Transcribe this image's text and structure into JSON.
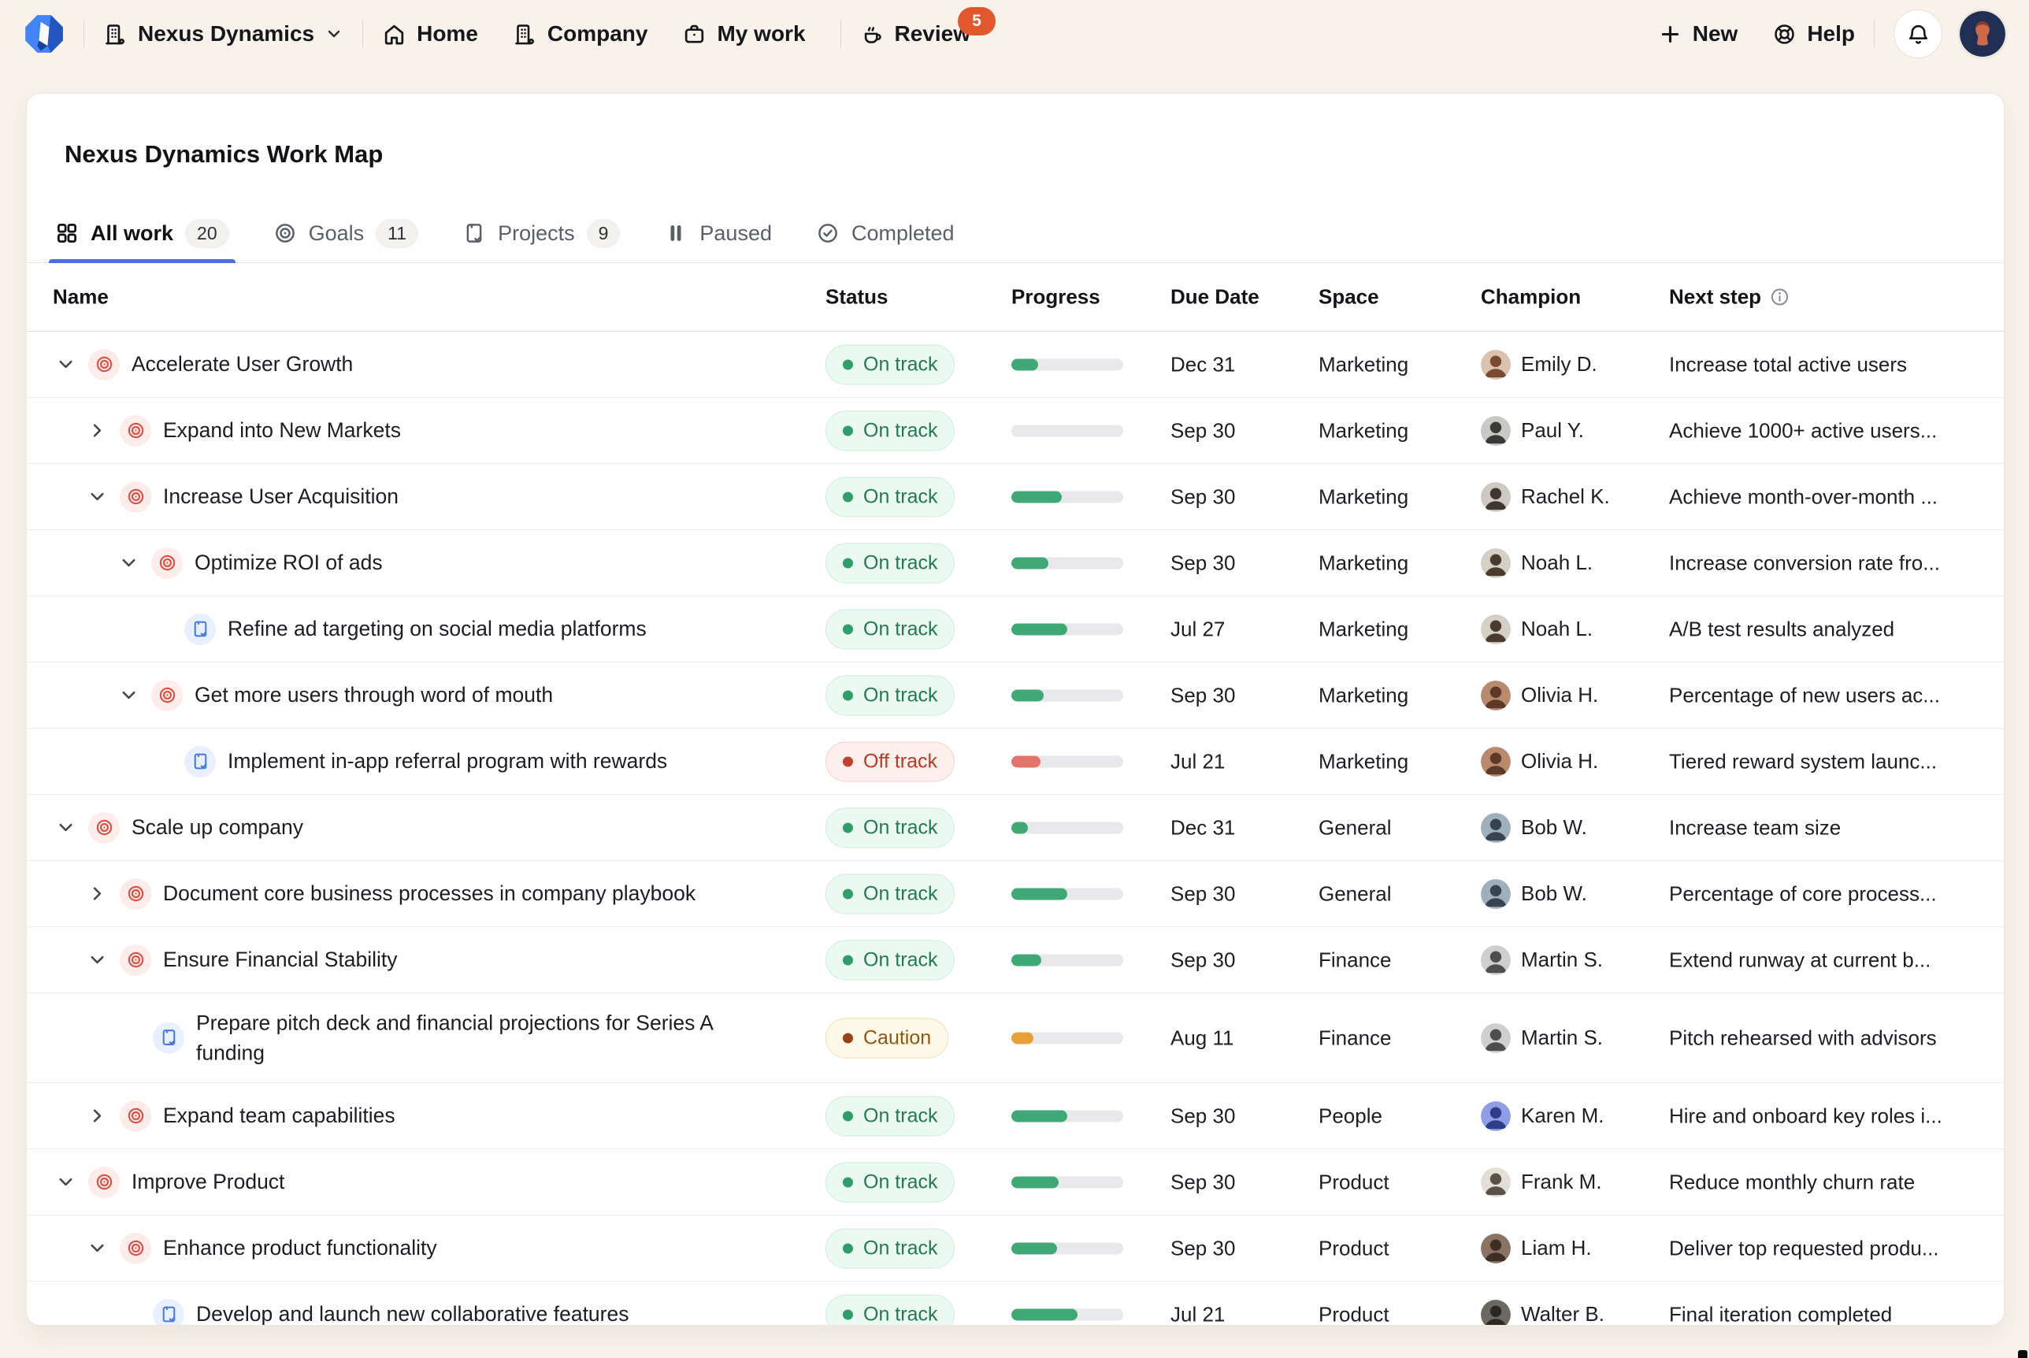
{
  "nav": {
    "workspace_label": "Nexus Dynamics",
    "home_label": "Home",
    "company_label": "Company",
    "my_work_label": "My work",
    "review_label": "Review",
    "review_badge": "5",
    "new_label": "New",
    "help_label": "Help"
  },
  "page": {
    "title": "Nexus Dynamics Work Map"
  },
  "tabs": [
    {
      "label": "All work",
      "count": "20",
      "icon": "grid-icon",
      "active": true
    },
    {
      "label": "Goals",
      "count": "11",
      "icon": "target-icon",
      "active": false
    },
    {
      "label": "Projects",
      "count": "9",
      "icon": "clipboard-check-icon",
      "active": false
    },
    {
      "label": "Paused",
      "count": "",
      "icon": "pause-icon",
      "active": false
    },
    {
      "label": "Completed",
      "count": "",
      "icon": "check-circle-icon",
      "active": false
    }
  ],
  "table": {
    "columns": {
      "name": "Name",
      "status": "Status",
      "progress": "Progress",
      "due_date": "Due Date",
      "space": "Space",
      "champion": "Champion",
      "next_step": "Next step"
    }
  },
  "rows": [
    {
      "level": 0,
      "kind": "goal",
      "expander": "down",
      "name": "Accelerate User Growth",
      "status": {
        "label": "On track",
        "variant": "on-track"
      },
      "progress": {
        "percent": 24,
        "variant": "green"
      },
      "due": "Dec 31",
      "space": "Marketing",
      "champion": {
        "name": "Emily D.",
        "avatar_bg": "#d9c2b0",
        "avatar_fg": "#7a4a33"
      },
      "next_step": "Increase total active users",
      "tall": false
    },
    {
      "level": 1,
      "kind": "goal",
      "expander": "right",
      "name": "Expand into New Markets",
      "status": {
        "label": "On track",
        "variant": "on-track"
      },
      "progress": {
        "percent": 0,
        "variant": "green"
      },
      "due": "Sep 30",
      "space": "Marketing",
      "champion": {
        "name": "Paul Y.",
        "avatar_bg": "#c8c8c4",
        "avatar_fg": "#3a3a38"
      },
      "next_step": "Achieve 1000+ active users...",
      "tall": false
    },
    {
      "level": 1,
      "kind": "goal",
      "expander": "down",
      "name": "Increase User Acquisition",
      "status": {
        "label": "On track",
        "variant": "on-track"
      },
      "progress": {
        "percent": 45,
        "variant": "green"
      },
      "due": "Sep 30",
      "space": "Marketing",
      "champion": {
        "name": "Rachel K.",
        "avatar_bg": "#cfc9c2",
        "avatar_fg": "#42352f"
      },
      "next_step": "Achieve month-over-month ...",
      "tall": false
    },
    {
      "level": 2,
      "kind": "goal",
      "expander": "down",
      "name": "Optimize ROI of ads",
      "status": {
        "label": "On track",
        "variant": "on-track"
      },
      "progress": {
        "percent": 33,
        "variant": "green"
      },
      "due": "Sep 30",
      "space": "Marketing",
      "champion": {
        "name": "Noah L.",
        "avatar_bg": "#d6cfc4",
        "avatar_fg": "#4a3b2d"
      },
      "next_step": "Increase conversion rate fro...",
      "tall": false
    },
    {
      "level": 3,
      "kind": "project",
      "expander": "none",
      "name": "Refine ad targeting on social media platforms",
      "status": {
        "label": "On track",
        "variant": "on-track"
      },
      "progress": {
        "percent": 50,
        "variant": "green"
      },
      "due": "Jul 27",
      "space": "Marketing",
      "champion": {
        "name": "Noah L.",
        "avatar_bg": "#d6cfc4",
        "avatar_fg": "#4a3b2d"
      },
      "next_step": "A/B test results analyzed",
      "tall": false
    },
    {
      "level": 2,
      "kind": "goal",
      "expander": "down",
      "name": "Get more users through word of mouth",
      "status": {
        "label": "On track",
        "variant": "on-track"
      },
      "progress": {
        "percent": 29,
        "variant": "green"
      },
      "due": "Sep 30",
      "space": "Marketing",
      "champion": {
        "name": "Olivia H.",
        "avatar_bg": "#b98a6e",
        "avatar_fg": "#5d3a28"
      },
      "next_step": "Percentage of new users ac...",
      "tall": false
    },
    {
      "level": 3,
      "kind": "project",
      "expander": "none",
      "name": "Implement in-app referral program with rewards",
      "status": {
        "label": "Off track",
        "variant": "off-track"
      },
      "progress": {
        "percent": 26,
        "variant": "red"
      },
      "due": "Jul 21",
      "space": "Marketing",
      "champion": {
        "name": "Olivia H.",
        "avatar_bg": "#b98a6e",
        "avatar_fg": "#5d3a28"
      },
      "next_step": "Tiered reward system launc...",
      "tall": false
    },
    {
      "level": 0,
      "kind": "goal",
      "expander": "down",
      "name": "Scale up company",
      "status": {
        "label": "On track",
        "variant": "on-track"
      },
      "progress": {
        "percent": 15,
        "variant": "green"
      },
      "due": "Dec 31",
      "space": "General",
      "champion": {
        "name": "Bob W.",
        "avatar_bg": "#9fb0bd",
        "avatar_fg": "#37444e"
      },
      "next_step": "Increase team size",
      "tall": false
    },
    {
      "level": 1,
      "kind": "goal",
      "expander": "right",
      "name": "Document core business processes in company playbook",
      "status": {
        "label": "On track",
        "variant": "on-track"
      },
      "progress": {
        "percent": 50,
        "variant": "green"
      },
      "due": "Sep 30",
      "space": "General",
      "champion": {
        "name": "Bob W.",
        "avatar_bg": "#9fb0bd",
        "avatar_fg": "#37444e"
      },
      "next_step": "Percentage of core process...",
      "tall": false
    },
    {
      "level": 1,
      "kind": "goal",
      "expander": "down",
      "name": "Ensure Financial Stability",
      "status": {
        "label": "On track",
        "variant": "on-track"
      },
      "progress": {
        "percent": 27,
        "variant": "green"
      },
      "due": "Sep 30",
      "space": "Finance",
      "champion": {
        "name": "Martin S.",
        "avatar_bg": "#cfcfcf",
        "avatar_fg": "#4e4e4e"
      },
      "next_step": "Extend runway at current b...",
      "tall": false
    },
    {
      "level": 2,
      "kind": "project",
      "expander": "none",
      "name": "Prepare pitch deck and financial projections for Series A funding",
      "status": {
        "label": "Caution",
        "variant": "caution"
      },
      "progress": {
        "percent": 20,
        "variant": "amber"
      },
      "due": "Aug 11",
      "space": "Finance",
      "champion": {
        "name": "Martin S.",
        "avatar_bg": "#cfcfcf",
        "avatar_fg": "#4e4e4e"
      },
      "next_step": "Pitch rehearsed with advisors",
      "tall": true
    },
    {
      "level": 1,
      "kind": "goal",
      "expander": "right",
      "name": "Expand team capabilities",
      "status": {
        "label": "On track",
        "variant": "on-track"
      },
      "progress": {
        "percent": 50,
        "variant": "green"
      },
      "due": "Sep 30",
      "space": "People",
      "champion": {
        "name": "Karen M.",
        "avatar_bg": "#8e9fe8",
        "avatar_fg": "#2f3d8a"
      },
      "next_step": "Hire and onboard key roles i...",
      "tall": false
    },
    {
      "level": 0,
      "kind": "goal",
      "expander": "down",
      "name": "Improve Product",
      "status": {
        "label": "On track",
        "variant": "on-track"
      },
      "progress": {
        "percent": 42,
        "variant": "green"
      },
      "due": "Sep 30",
      "space": "Product",
      "champion": {
        "name": "Frank M.",
        "avatar_bg": "#e3ded6",
        "avatar_fg": "#5a5248"
      },
      "next_step": "Reduce monthly churn rate",
      "tall": false
    },
    {
      "level": 1,
      "kind": "goal",
      "expander": "down",
      "name": "Enhance product functionality",
      "status": {
        "label": "On track",
        "variant": "on-track"
      },
      "progress": {
        "percent": 41,
        "variant": "green"
      },
      "due": "Sep 30",
      "space": "Product",
      "champion": {
        "name": "Liam H.",
        "avatar_bg": "#8a7363",
        "avatar_fg": "#3e2f26"
      },
      "next_step": "Deliver top requested produ...",
      "tall": false
    },
    {
      "level": 2,
      "kind": "project",
      "expander": "none",
      "name": "Develop and launch new collaborative features",
      "status": {
        "label": "On track",
        "variant": "on-track"
      },
      "progress": {
        "percent": 59,
        "variant": "green"
      },
      "due": "Jul 21",
      "space": "Product",
      "champion": {
        "name": "Walter B.",
        "avatar_bg": "#6e6862",
        "avatar_fg": "#2c2824"
      },
      "next_step": "Final iteration completed",
      "tall": false
    }
  ],
  "colors": {
    "background": "#f8f2ea",
    "accent_blue": "#4a6fe3",
    "review_badge": "#e2572b",
    "on_track_text": "#237a50",
    "off_track_text": "#b73a2b",
    "caution_text": "#8b5a10",
    "progress_green": "#3fa874",
    "progress_red": "#e3746b",
    "progress_amber": "#e9a03a",
    "goal_icon": "#d8544a",
    "project_icon": "#4a7ae0"
  }
}
